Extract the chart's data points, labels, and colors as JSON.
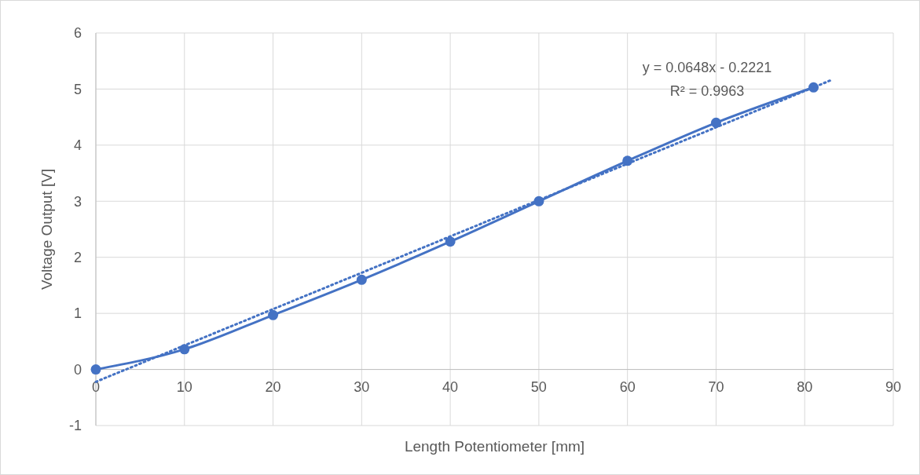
{
  "chart_data": {
    "type": "line",
    "xlabel": "Length Potentiometer [mm]",
    "ylabel": "Voltage Output [V]",
    "xlim": [
      0,
      90
    ],
    "xticks": [
      0,
      10,
      20,
      30,
      40,
      50,
      60,
      70,
      80,
      90
    ],
    "ylim": [
      -1,
      6
    ],
    "yticks": [
      -1,
      0,
      1,
      2,
      3,
      4,
      5,
      6
    ],
    "grid": true,
    "marker": "circle",
    "line_style": "solid",
    "series": [
      {
        "color": "#4472c4",
        "x": [
          0,
          10,
          20,
          30,
          40,
          50,
          60,
          70,
          81
        ],
        "values": [
          0,
          0.36,
          0.97,
          1.6,
          2.28,
          3.0,
          3.72,
          4.4,
          5.03
        ]
      },
      {
        "type": "line",
        "color": "#4472c4",
        "x": [
          0,
          83
        ],
        "values": [
          -0.22,
          5.16
        ],
        "line_style": "dotted",
        "marker": "none"
      }
    ],
    "annotations": [
      "y = 0.0648x - 0.2221",
      "R² = 0.9963"
    ]
  }
}
